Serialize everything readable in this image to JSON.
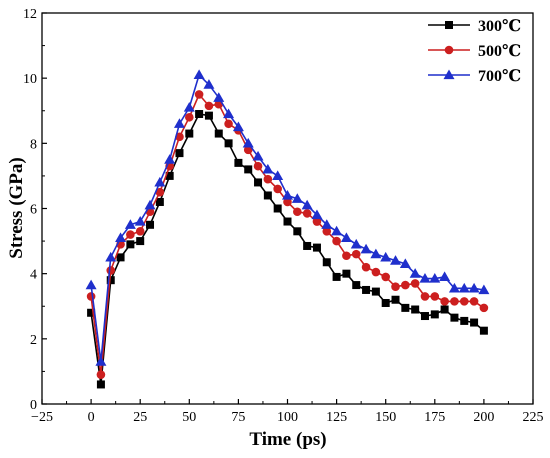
{
  "chart_data": {
    "type": "line",
    "xlabel": "Time (ps)",
    "ylabel": "Stress (GPa)",
    "xlim": [
      -25,
      225
    ],
    "ylim": [
      0,
      12
    ],
    "xticks": [
      "−25",
      "0",
      "25",
      "50",
      "75",
      "100",
      "125",
      "150",
      "175",
      "200",
      "225"
    ],
    "xtick_values": [
      -25,
      0,
      25,
      50,
      75,
      100,
      125,
      150,
      175,
      200,
      225
    ],
    "yticks": [
      "0",
      "2",
      "4",
      "6",
      "8",
      "10",
      "12"
    ],
    "ytick_values": [
      0,
      2,
      4,
      6,
      8,
      10,
      12
    ],
    "grid": false,
    "legend": "top-right",
    "series": [
      {
        "name": "300℃",
        "color": "#000000",
        "marker": "square",
        "x": [
          0,
          5,
          10,
          15,
          20,
          25,
          30,
          35,
          40,
          45,
          50,
          55,
          60,
          65,
          70,
          75,
          80,
          85,
          90,
          95,
          100,
          105,
          110,
          115,
          120,
          125,
          130,
          135,
          140,
          145,
          150,
          155,
          160,
          165,
          170,
          175,
          180,
          185,
          190,
          195,
          200
        ],
        "values": [
          2.8,
          0.6,
          3.8,
          4.5,
          4.9,
          5.0,
          5.5,
          6.2,
          7.0,
          7.7,
          8.3,
          8.9,
          8.85,
          8.3,
          8.0,
          7.4,
          7.2,
          6.8,
          6.4,
          6.0,
          5.6,
          5.3,
          4.85,
          4.8,
          4.35,
          3.9,
          4.0,
          3.65,
          3.5,
          3.45,
          3.1,
          3.2,
          2.95,
          2.9,
          2.7,
          2.75,
          2.9,
          2.65,
          2.55,
          2.5,
          2.25
        ]
      },
      {
        "name": "500℃",
        "color": "#cc1f1f",
        "marker": "circle",
        "x": [
          0,
          5,
          10,
          15,
          20,
          25,
          30,
          35,
          40,
          45,
          50,
          55,
          60,
          65,
          70,
          75,
          80,
          85,
          90,
          95,
          100,
          105,
          110,
          115,
          120,
          125,
          130,
          135,
          140,
          145,
          150,
          155,
          160,
          165,
          170,
          175,
          180,
          185,
          190,
          195,
          200
        ],
        "values": [
          3.3,
          0.9,
          4.1,
          4.9,
          5.2,
          5.3,
          5.9,
          6.5,
          7.3,
          8.2,
          8.8,
          9.5,
          9.15,
          9.2,
          8.6,
          8.4,
          7.8,
          7.3,
          6.9,
          6.6,
          6.2,
          5.9,
          5.85,
          5.6,
          5.3,
          5.0,
          4.55,
          4.6,
          4.2,
          4.05,
          3.9,
          3.6,
          3.65,
          3.7,
          3.3,
          3.3,
          3.15,
          3.15,
          3.15,
          3.15,
          2.95
        ]
      },
      {
        "name": "700℃",
        "color": "#1f2fcc",
        "marker": "triangle",
        "x": [
          0,
          5,
          10,
          15,
          20,
          25,
          30,
          35,
          40,
          45,
          50,
          55,
          60,
          65,
          70,
          75,
          80,
          85,
          90,
          95,
          100,
          105,
          110,
          115,
          120,
          125,
          130,
          135,
          140,
          145,
          150,
          155,
          160,
          165,
          170,
          175,
          180,
          185,
          190,
          195,
          200
        ],
        "values": [
          3.65,
          1.3,
          4.5,
          5.1,
          5.5,
          5.6,
          6.1,
          6.8,
          7.5,
          8.6,
          9.1,
          10.1,
          9.8,
          9.4,
          8.9,
          8.5,
          8.0,
          7.6,
          7.2,
          7.0,
          6.4,
          6.3,
          6.1,
          5.8,
          5.5,
          5.3,
          5.1,
          4.9,
          4.75,
          4.6,
          4.5,
          4.4,
          4.3,
          4.0,
          3.85,
          3.85,
          3.9,
          3.55,
          3.55,
          3.55,
          3.5
        ]
      }
    ]
  }
}
